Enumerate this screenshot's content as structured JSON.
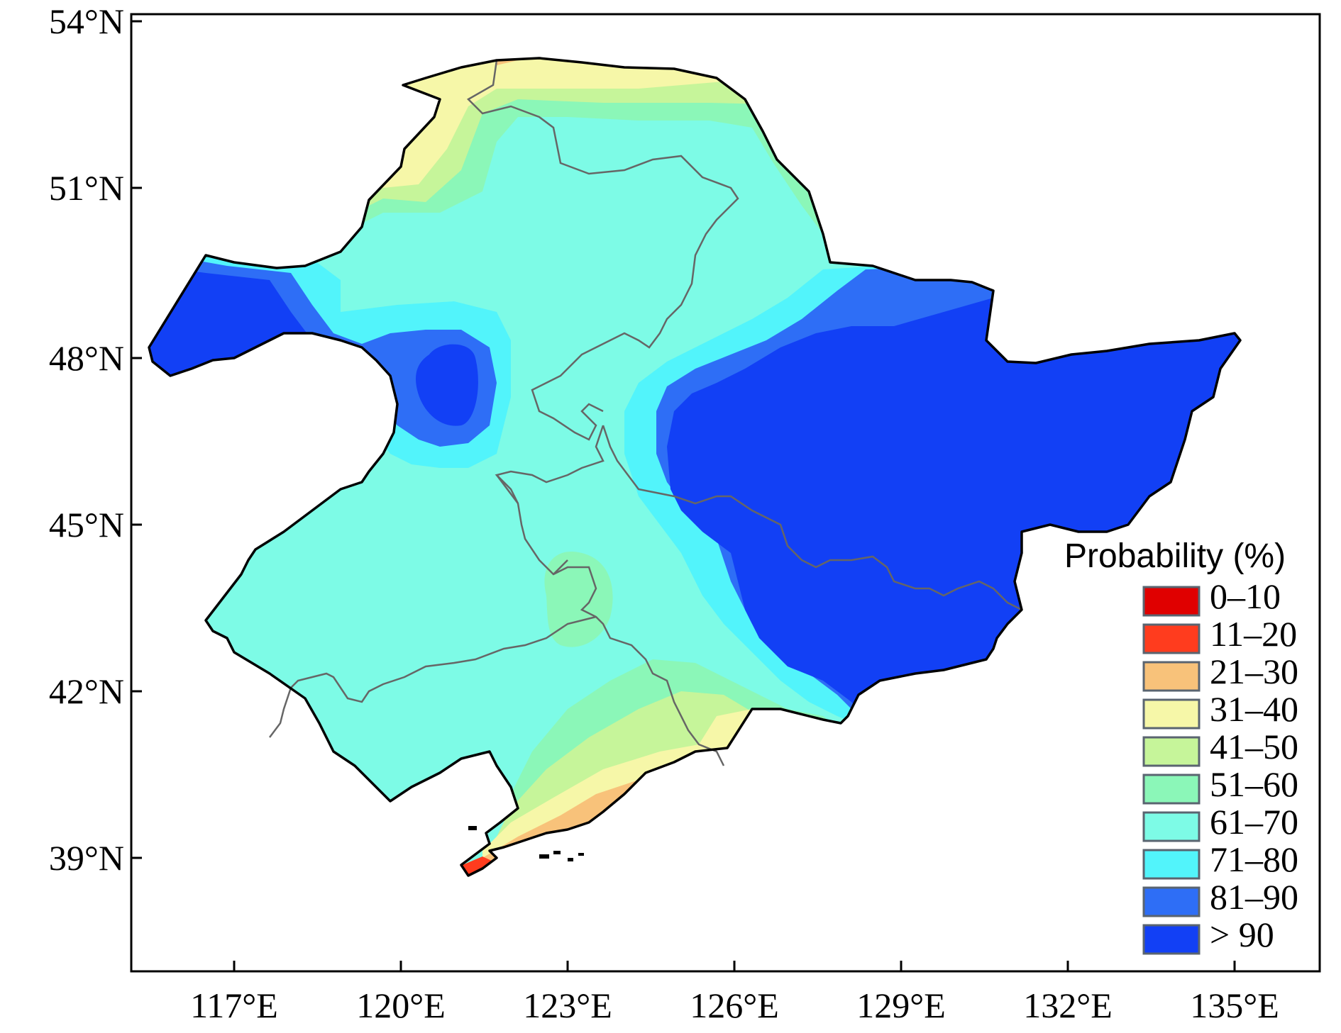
{
  "map": {
    "x_ticks": [
      "117°E",
      "120°E",
      "123°E",
      "126°E",
      "129°E",
      "132°E",
      "135°E"
    ],
    "y_ticks": [
      "54°N",
      "51°N",
      "48°N",
      "45°N",
      "42°N",
      "39°N"
    ],
    "legend": {
      "title": "Probability (%)",
      "classes": [
        {
          "label": "0–10",
          "color": "#e00000"
        },
        {
          "label": "11–20",
          "color": "#ff3c1e"
        },
        {
          "label": "21–30",
          "color": "#f8c27a"
        },
        {
          "label": "31–40",
          "color": "#f6f7a8"
        },
        {
          "label": "41–50",
          "color": "#c6f59a"
        },
        {
          "label": "51–60",
          "color": "#8bf7b8"
        },
        {
          "label": "61–70",
          "color": "#7dfbe6"
        },
        {
          "label": "71–80",
          "color": "#52f4fb"
        },
        {
          "label": "81–90",
          "color": "#2e6ef6"
        },
        {
          "label": "> 90",
          "color": "#1240f5"
        }
      ]
    }
  }
}
